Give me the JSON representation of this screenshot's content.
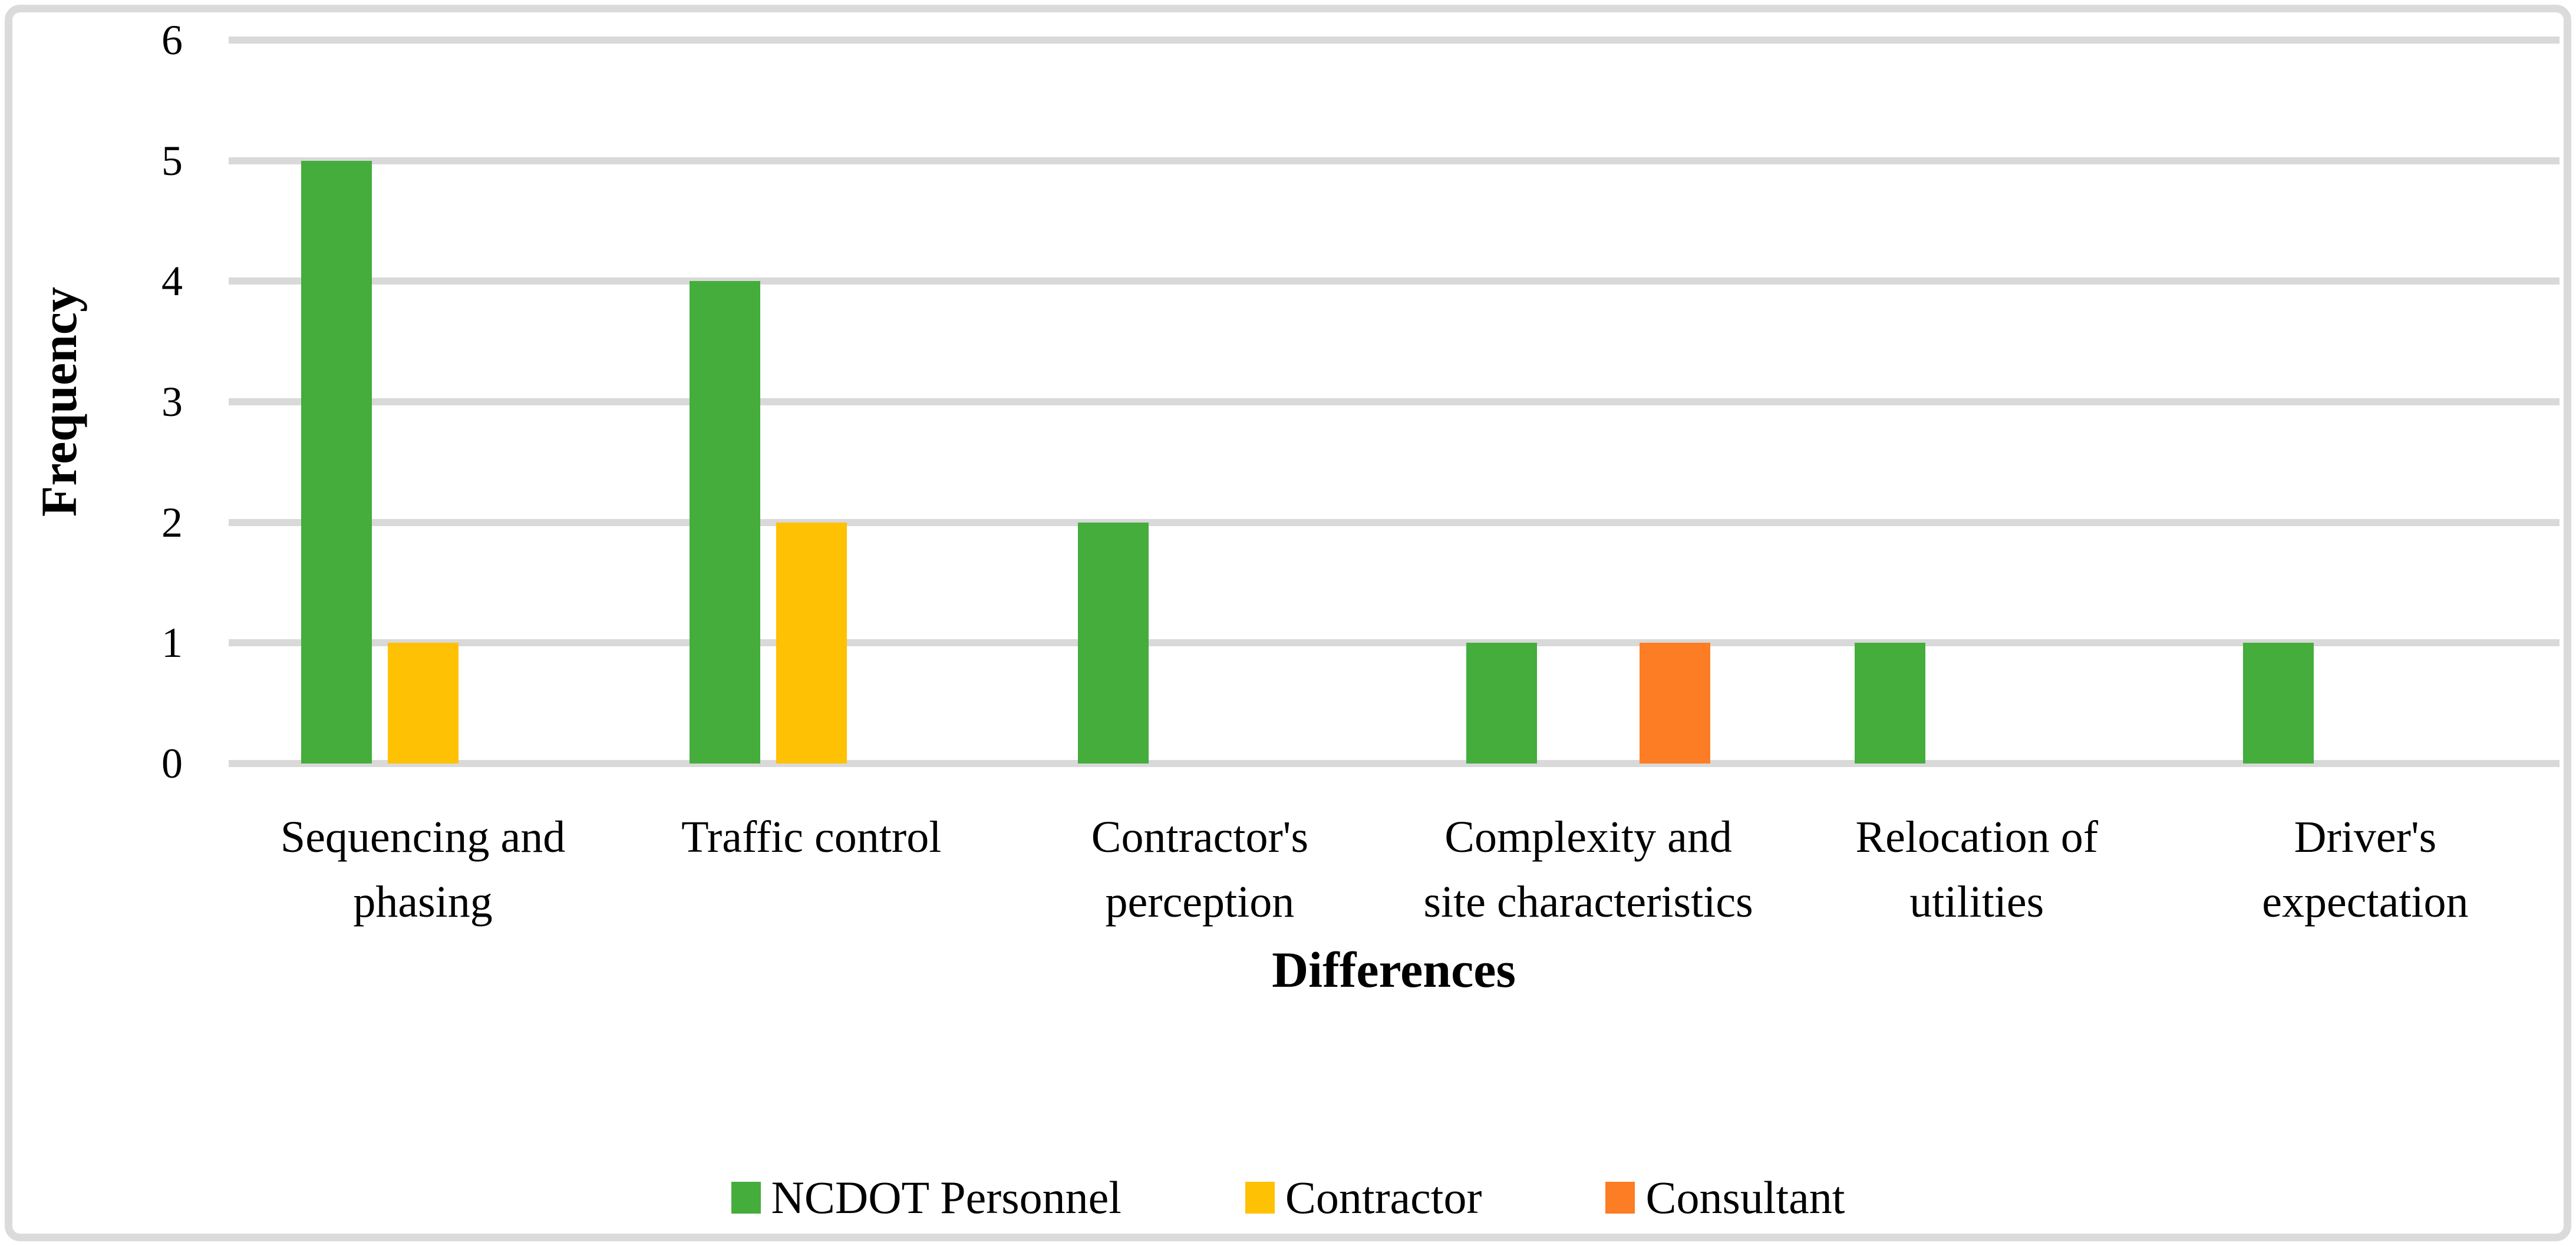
{
  "figure": {
    "background_color": "#ffffff",
    "border_color": "#dbdbdb",
    "gridline_color": "#d9d9d9"
  },
  "chart_data": {
    "type": "bar",
    "title": "",
    "xlabel": "Differences",
    "ylabel": "Frequency",
    "categories": [
      "Sequencing and\nphasing",
      "Traffic control",
      "Contractor's\nperception",
      "Complexity and\nsite characteristics",
      "Relocation of\nutilities",
      "Driver's\nexpectation"
    ],
    "series": [
      {
        "name": "NCDOT Personnel",
        "color": "#44ad3c",
        "values": [
          5,
          4,
          2,
          1,
          1,
          1
        ]
      },
      {
        "name": "Contractor",
        "color": "#ffc103",
        "values": [
          1,
          2,
          0,
          0,
          0,
          0
        ]
      },
      {
        "name": "Consultant",
        "color": "#fc7d23",
        "values": [
          0,
          0,
          0,
          1,
          0,
          0
        ]
      }
    ],
    "ylim": [
      0,
      6
    ],
    "yticks": [
      0,
      1,
      2,
      3,
      4,
      5,
      6
    ],
    "grid": true,
    "legend_position": "bottom"
  }
}
